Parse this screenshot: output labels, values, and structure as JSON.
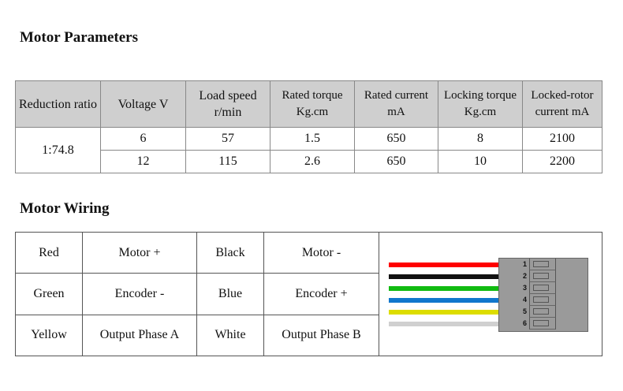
{
  "params": {
    "title": "Motor Parameters",
    "headers": [
      "Reduction ratio",
      "Voltage V",
      "Load speed r/min",
      "Rated torque Kg.cm",
      "Rated current mA",
      "Locking torque Kg.cm",
      "Locked-rotor current mA"
    ],
    "ratio": "1:74.8",
    "rows": [
      [
        "6",
        "57",
        "1.5",
        "650",
        "8",
        "2100"
      ],
      [
        "12",
        "115",
        "2.6",
        "650",
        "10",
        "2200"
      ]
    ]
  },
  "wiring": {
    "title": "Motor Wiring",
    "rows": [
      [
        "Red",
        "Motor +",
        "Black",
        "Motor -"
      ],
      [
        "Green",
        "Encoder -",
        "Blue",
        "Encoder +"
      ],
      [
        "Yellow",
        "Output Phase A",
        "White",
        "Output Phase B"
      ]
    ],
    "wire_colors": [
      "#ff0000",
      "#111111",
      "#11bb11",
      "#1177cc",
      "#dddd00",
      "#d0d0d0"
    ],
    "pins": [
      "1",
      "2",
      "3",
      "4",
      "5",
      "6"
    ]
  }
}
